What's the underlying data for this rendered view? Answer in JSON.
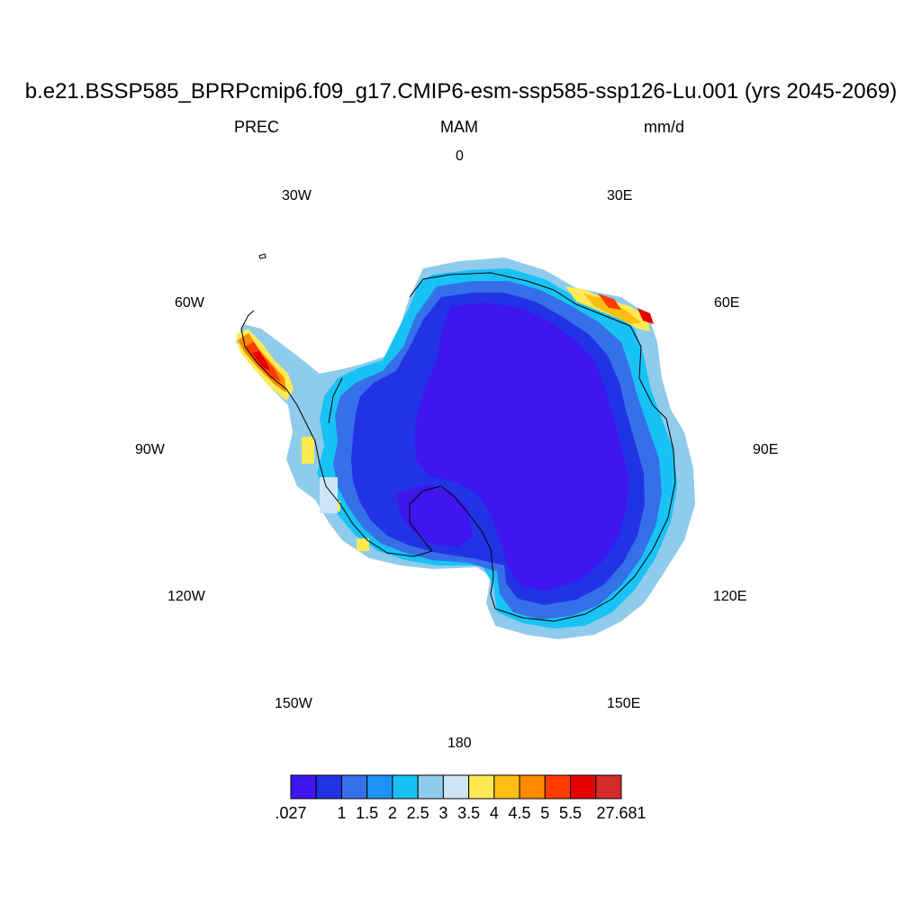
{
  "title": "b.e21.BSSP585_BPRPcmip6.f09_g17.CMIP6-esm-ssp585-ssp126-Lu.001 (yrs 2045-2069)",
  "variable": "PREC",
  "season": "MAM",
  "units": "mm/d",
  "longitude_labels": [
    "0",
    "30E",
    "60E",
    "90E",
    "120E",
    "150E",
    "180",
    "150W",
    "120W",
    "90W",
    "60W",
    "30W"
  ],
  "colorbar": {
    "colors": [
      "#3e16f0",
      "#2233e6",
      "#3670e8",
      "#1e93f5",
      "#18c2f5",
      "#8fcbec",
      "#cce6f5",
      "#ffea55",
      "#ffbe14",
      "#ff8a00",
      "#ff3c00",
      "#e60000",
      "#d42b2b"
    ],
    "labels": [
      ".027",
      "1",
      "1.5",
      "2",
      "2.5",
      "3",
      "3.5",
      "4",
      "4.5",
      "5",
      "5.5",
      "27.681"
    ]
  },
  "map_data": {
    "projection": "south polar stereographic",
    "region": "Antarctica",
    "field": "precipitation",
    "interior_value_range_mmd": [
      0.027,
      1.0
    ],
    "coastal_value_range_mmd": [
      1.5,
      3.5
    ],
    "maxima_locations": [
      "Antarctic Peninsula west coast",
      "East Antarctic coast near 45-60E"
    ],
    "maximum_value_mmd": 27.681
  }
}
